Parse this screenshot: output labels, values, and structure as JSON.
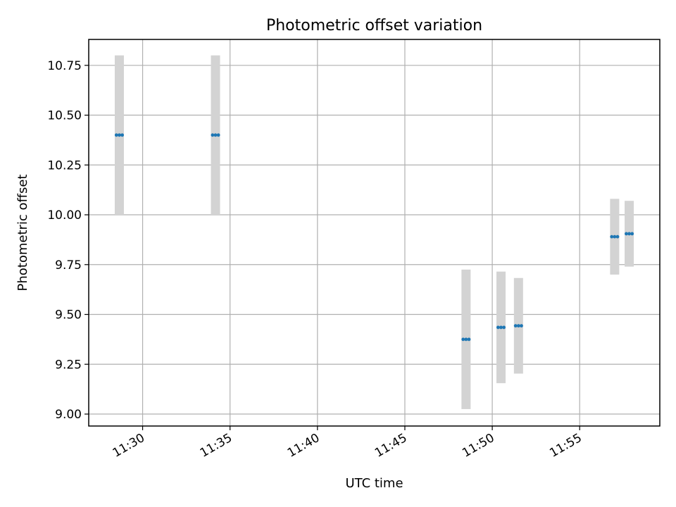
{
  "chart_data": {
    "type": "scatter",
    "title": "Photometric offset variation",
    "xlabel": "UTC time",
    "ylabel": "Photometric offset",
    "xlim": [
      "11:26:55",
      "11:59:35"
    ],
    "ylim": [
      8.94,
      10.88
    ],
    "xticks": [
      "11:30",
      "11:35",
      "11:40",
      "11:45",
      "11:50",
      "11:55"
    ],
    "yticks": [
      "9.00",
      "9.25",
      "9.50",
      "9.75",
      "10.00",
      "10.25",
      "10.50",
      "10.75"
    ],
    "grid": true,
    "colors": {
      "points": "#1f77b4",
      "error_bars": "#d3d3d3",
      "grid": "#b0b0b0"
    },
    "series": [
      {
        "points": [
          {
            "start": "11:28:30",
            "end": "11:28:50",
            "y": 10.4,
            "err": 0.4
          },
          {
            "start": "11:34:00",
            "end": "11:34:20",
            "y": 10.4,
            "err": 0.4
          },
          {
            "start": "11:48:20",
            "end": "11:48:40",
            "y": 9.375,
            "err": 0.35
          },
          {
            "start": "11:50:20",
            "end": "11:50:40",
            "y": 9.435,
            "err": 0.28
          },
          {
            "start": "11:51:20",
            "end": "11:51:40",
            "y": 9.443,
            "err": 0.24
          },
          {
            "start": "11:56:50",
            "end": "11:57:10",
            "y": 9.89,
            "err": 0.19
          },
          {
            "start": "11:57:40",
            "end": "11:58:00",
            "y": 9.905,
            "err": 0.165
          }
        ]
      }
    ]
  }
}
